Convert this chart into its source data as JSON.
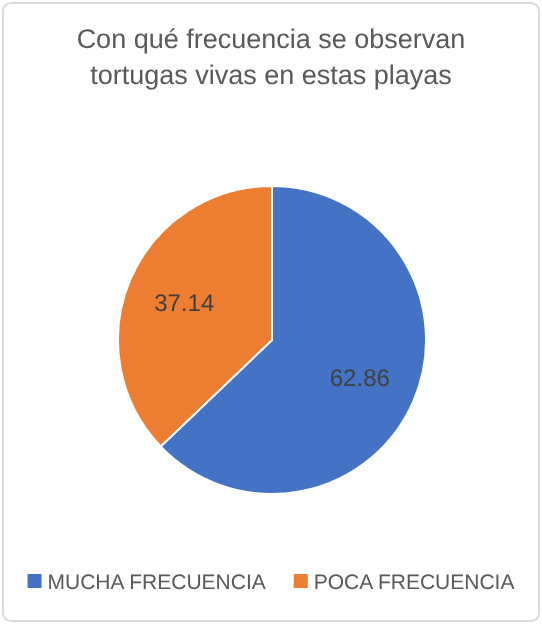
{
  "chart_data": {
    "type": "pie",
    "title": "Con qué frecuencia se observan tortugas vivas en estas playas",
    "categories": [
      "MUCHA FRECUENCIA",
      "POCA FRECUENCIA"
    ],
    "values": [
      62.86,
      37.14
    ],
    "colors": [
      "#4472c4",
      "#ed7d31"
    ],
    "data_labels": true,
    "legend": "bottom"
  }
}
